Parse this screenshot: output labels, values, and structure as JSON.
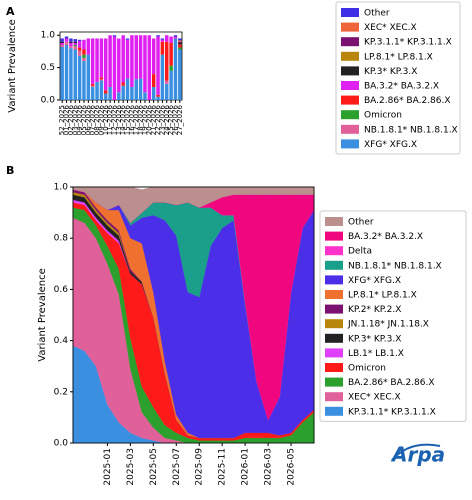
{
  "chart_data": [
    {
      "type": "bar",
      "label": "A",
      "stacked": true,
      "ylabel": "Variant Prevalence",
      "legend": "right",
      "categories": [
        "52_2025",
        "01_2026",
        "02_2026",
        "03_2026",
        "04_2026",
        "05_2026",
        "06_2026",
        "07_2026",
        "08_2026",
        "09_2026",
        "10_2026",
        "11_2026",
        "12_2026",
        "13_2026",
        "14_2026",
        "15_2026",
        "16_2026",
        "17_2026",
        "18_2026",
        "19_2026",
        "20_2026",
        "21_2026",
        "22_2026",
        "23_2026",
        "24_2026",
        "25_2026",
        "26_2026",
        "27_2026"
      ],
      "ylim": [
        0,
        1.05
      ],
      "yticks": [
        {
          "value": 0,
          "label": "0.0"
        },
        {
          "value": 0.5,
          "label": "0.5"
        },
        {
          "value": 1,
          "label": "1.0"
        }
      ],
      "series": [
        {
          "name": "XFG* XFG.X",
          "color": "#3a8fe0",
          "values": [
            0.82,
            0.85,
            0.8,
            0.78,
            0.68,
            0.6,
            0.7,
            0.2,
            0.28,
            0.3,
            0.1,
            0.2,
            0,
            0.12,
            0.22,
            0.33,
            0.2,
            0.32,
            0.33,
            0.12,
            0,
            0.2,
            0.05,
            0.7,
            0.25,
            0.45,
            0.95,
            0.78
          ]
        },
        {
          "name": "NB.1.8.1* NB.1.8.1.X",
          "color": "#e0609a",
          "values": [
            0.03,
            0.05,
            0.03,
            0.05,
            0.08,
            0.05,
            0,
            0.02,
            0,
            0.02,
            0,
            0,
            0,
            0,
            0,
            0,
            0,
            0,
            0,
            0,
            0,
            0,
            0,
            0,
            0.05,
            0,
            0,
            0
          ]
        },
        {
          "name": "Omicron",
          "color": "#2ca02c",
          "values": [
            0,
            0,
            0,
            0.02,
            0,
            0.05,
            0,
            0,
            0,
            0,
            0,
            0,
            0,
            0,
            0,
            0,
            0,
            0,
            0,
            0,
            0,
            0,
            0,
            0,
            0,
            0.08,
            0,
            0.03
          ]
        },
        {
          "name": "BA.2.86* BA.2.86.X",
          "color": "#ff1a1a",
          "values": [
            0,
            0,
            0,
            0,
            0.05,
            0.08,
            0,
            0.03,
            0,
            0.03,
            0.05,
            0,
            0,
            0,
            0.05,
            0,
            0,
            0,
            0,
            0,
            0,
            0.2,
            0.03,
            0.2,
            0.6,
            0.35,
            0,
            0.05
          ]
        },
        {
          "name": "BA.3.2* BA.3.2.X",
          "color": "#e020f0",
          "values": [
            0.03,
            0.05,
            0.05,
            0.03,
            0.1,
            0.15,
            0.25,
            0.7,
            0.67,
            0.6,
            0.8,
            0.8,
            0.98,
            0.83,
            0.73,
            0.6,
            0.8,
            0.68,
            0.67,
            0.88,
            1.0,
            0.55,
            0.9,
            0.03,
            0.1,
            0.1,
            0.03,
            0
          ]
        },
        {
          "name": "KP.3* KP.3.X",
          "color": "#222222",
          "values": [
            0.02,
            0,
            0.02,
            0.02,
            0,
            0,
            0,
            0,
            0,
            0,
            0,
            0,
            0,
            0,
            0,
            0,
            0,
            0,
            0,
            0,
            0,
            0,
            0,
            0,
            0,
            0,
            0,
            0.02
          ]
        },
        {
          "name": "LP.8.1* LP.8.1.X",
          "color": "#b8860b",
          "values": [
            0,
            0,
            0,
            0,
            0,
            0,
            0,
            0,
            0,
            0,
            0,
            0,
            0,
            0,
            0,
            0,
            0,
            0,
            0,
            0,
            0,
            0,
            0,
            0,
            0,
            0,
            0,
            0
          ]
        },
        {
          "name": "KP.3.1.1* KP.3.1.1.X",
          "color": "#7b1170",
          "values": [
            0,
            0,
            0,
            0,
            0,
            0,
            0,
            0,
            0,
            0,
            0,
            0,
            0,
            0,
            0,
            0,
            0,
            0,
            0,
            0,
            0,
            0,
            0,
            0,
            0,
            0,
            0,
            0.02
          ]
        },
        {
          "name": "XEC* XEC.X",
          "color": "#f0643c",
          "values": [
            0,
            0,
            0,
            0,
            0,
            0,
            0,
            0,
            0,
            0,
            0,
            0,
            0,
            0,
            0,
            0,
            0,
            0,
            0,
            0,
            0,
            0,
            0,
            0,
            0,
            0,
            0,
            0.02
          ]
        },
        {
          "name": "Other",
          "color": "#3f2ee8",
          "values": [
            0.05,
            0.03,
            0.05,
            0.04,
            0.02,
            0,
            0,
            0,
            0,
            0,
            0,
            0,
            0.02,
            0,
            0,
            0.02,
            0,
            0,
            0,
            0,
            0,
            0,
            0.02,
            0.02,
            0,
            0,
            0.02,
            0.03
          ]
        }
      ]
    },
    {
      "type": "area",
      "label": "B",
      "stacked": true,
      "ylabel": "Variant Prevalence",
      "legend": "right",
      "x": [
        "2024-10",
        "2024-11",
        "2024-12",
        "2025-01",
        "2025-02",
        "2025-03",
        "2025-04",
        "2025-05",
        "2025-06",
        "2025-07",
        "2025-08",
        "2025-09",
        "2025-10",
        "2025-11",
        "2025-12",
        "2026-01",
        "2026-02",
        "2026-03",
        "2026-04",
        "2026-05",
        "2026-06",
        "2026-07"
      ],
      "xlim": [
        "2024-10",
        "2026-07"
      ],
      "xticks": [
        "2025-01",
        "2025-03",
        "2025-05",
        "2025-07",
        "2025-09",
        "2025-11",
        "2026-01",
        "2026-03",
        "2026-05"
      ],
      "ylim": [
        0,
        1
      ],
      "yticks": [
        {
          "value": 0,
          "label": "0.0"
        },
        {
          "value": 0.2,
          "label": "0.2"
        },
        {
          "value": 0.4,
          "label": "0.4"
        },
        {
          "value": 0.6,
          "label": "0.6"
        },
        {
          "value": 0.8,
          "label": "0.8"
        },
        {
          "value": 1,
          "label": "1.0"
        }
      ],
      "series": [
        {
          "name": "KP.3.1.1* KP.3.1.1.X",
          "color": "#3a8fe0",
          "values": [
            0.38,
            0.36,
            0.3,
            0.15,
            0.08,
            0.04,
            0.02,
            0.01,
            0,
            0,
            0,
            0,
            0,
            0,
            0,
            0,
            0,
            0,
            0,
            0,
            0,
            0
          ]
        },
        {
          "name": "XEC* XEC.X",
          "color": "#e0609a",
          "values": [
            0.5,
            0.5,
            0.5,
            0.55,
            0.5,
            0.25,
            0.1,
            0.05,
            0.02,
            0.01,
            0,
            0,
            0,
            0,
            0,
            0,
            0,
            0,
            0,
            0,
            0,
            0
          ]
        },
        {
          "name": "BA.2.86* BA.2.86.X",
          "color": "#2ca02c",
          "values": [
            0.04,
            0.05,
            0.05,
            0.07,
            0.1,
            0.12,
            0.1,
            0.08,
            0.05,
            0.03,
            0.02,
            0.01,
            0.01,
            0.01,
            0.01,
            0.02,
            0.02,
            0.02,
            0.02,
            0.03,
            0.08,
            0.12
          ]
        },
        {
          "name": "Omicron",
          "color": "#ff1a1a",
          "values": [
            0.02,
            0.02,
            0.02,
            0.05,
            0.1,
            0.25,
            0.4,
            0.35,
            0.2,
            0.05,
            0.01,
            0.01,
            0.01,
            0.01,
            0.01,
            0.02,
            0.02,
            0.02,
            0.01,
            0.01,
            0.01,
            0.01
          ]
        },
        {
          "name": "LB.1* LB.1.X",
          "color": "#e040fb",
          "values": [
            0.01,
            0.01,
            0.01,
            0.01,
            0.01,
            0,
            0,
            0,
            0,
            0,
            0,
            0,
            0,
            0,
            0,
            0,
            0,
            0,
            0,
            0,
            0,
            0
          ]
        },
        {
          "name": "KP.3* KP.3.X",
          "color": "#222222",
          "values": [
            0.02,
            0.02,
            0.02,
            0.02,
            0.02,
            0.01,
            0.01,
            0,
            0,
            0,
            0,
            0,
            0,
            0,
            0,
            0,
            0,
            0,
            0,
            0,
            0,
            0
          ]
        },
        {
          "name": "JN.1.18* JN.1.18.X",
          "color": "#b8860b",
          "values": [
            0.01,
            0.01,
            0.01,
            0.01,
            0.01,
            0,
            0,
            0,
            0,
            0,
            0,
            0,
            0,
            0,
            0,
            0,
            0,
            0,
            0,
            0,
            0,
            0
          ]
        },
        {
          "name": "KP.2* KP.2.X",
          "color": "#7b1170",
          "values": [
            0.01,
            0.01,
            0.01,
            0.01,
            0.01,
            0.01,
            0,
            0,
            0,
            0,
            0,
            0,
            0,
            0,
            0,
            0,
            0,
            0,
            0,
            0,
            0,
            0
          ]
        },
        {
          "name": "LP.8.1* LP.8.1.X",
          "color": "#f07030",
          "values": [
            0,
            0,
            0.02,
            0.04,
            0.08,
            0.12,
            0.15,
            0.1,
            0.05,
            0.02,
            0.01,
            0,
            0,
            0,
            0,
            0,
            0,
            0,
            0,
            0,
            0,
            0
          ]
        },
        {
          "name": "XFG* XFG.X",
          "color": "#4b2fe8",
          "values": [
            0,
            0,
            0,
            0,
            0.02,
            0.05,
            0.1,
            0.3,
            0.55,
            0.7,
            0.55,
            0.55,
            0.75,
            0.82,
            0.85,
            0.5,
            0.2,
            0.05,
            0.15,
            0.55,
            0.75,
            0.78
          ]
        },
        {
          "name": "NB.1.8.1* NB.1.8.1.X",
          "color": "#1aa08a",
          "values": [
            0,
            0,
            0,
            0,
            0,
            0.01,
            0.02,
            0.05,
            0.07,
            0.12,
            0.35,
            0.35,
            0.15,
            0.05,
            0.02,
            0.01,
            0,
            0,
            0,
            0,
            0,
            0
          ]
        },
        {
          "name": "Delta",
          "color": "#ff33cc",
          "values": [
            0,
            0,
            0,
            0,
            0,
            0,
            0,
            0,
            0,
            0,
            0,
            0,
            0,
            0,
            0,
            0,
            0,
            0,
            0,
            0,
            0,
            0
          ]
        },
        {
          "name": "BA.3.2* BA.3.2.X",
          "color": "#f0077f",
          "values": [
            0,
            0,
            0,
            0,
            0,
            0,
            0,
            0,
            0,
            0,
            0,
            0,
            0.02,
            0.07,
            0.08,
            0.42,
            0.73,
            0.88,
            0.79,
            0.38,
            0.13,
            0.06
          ]
        },
        {
          "name": "Other",
          "color": "#bc8f8f",
          "values": [
            0.01,
            0.02,
            0.06,
            0.09,
            0.07,
            0.14,
            0.09,
            0.06,
            0.06,
            0.07,
            0.06,
            0.08,
            0.06,
            0.04,
            0.03,
            0.03,
            0.03,
            0.03,
            0.03,
            0.03,
            0.03,
            0.03
          ]
        }
      ]
    }
  ],
  "logo": "Arpa"
}
